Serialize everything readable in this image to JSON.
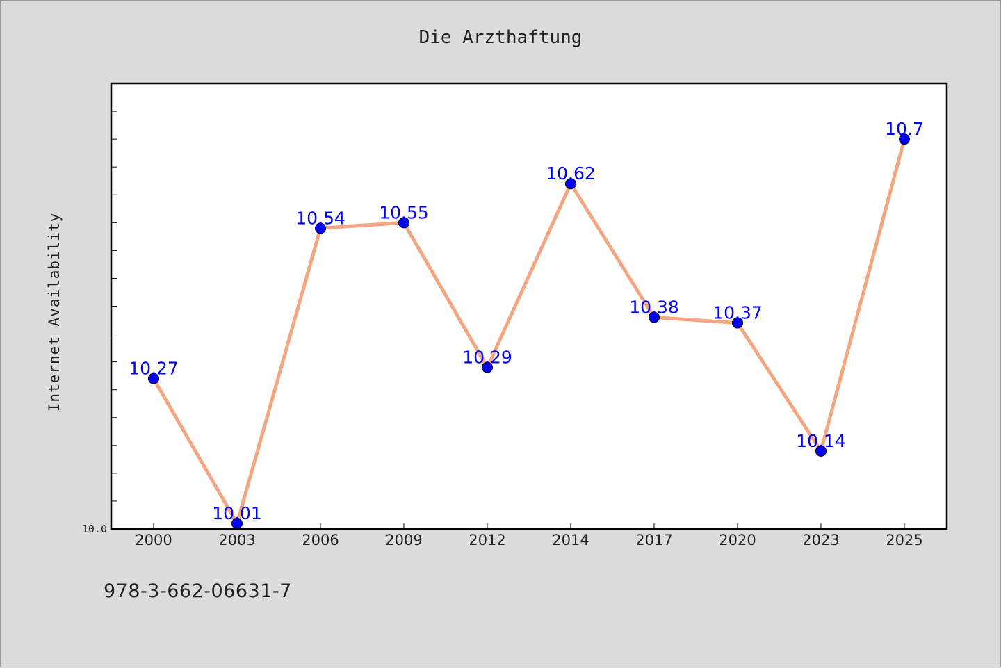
{
  "chart_data": {
    "type": "line",
    "title": "Die Arzthaftung",
    "xlabel": "",
    "ylabel": "Internet Availability",
    "categories": [
      "2000",
      "2003",
      "2006",
      "2009",
      "2012",
      "2014",
      "2017",
      "2020",
      "2023",
      "2025"
    ],
    "series": [
      {
        "values": [
          10.27,
          10.01,
          10.54,
          10.55,
          10.29,
          10.62,
          10.38,
          10.37,
          10.14,
          10.7
        ],
        "labels": [
          "10.27",
          "10.01",
          "10.54",
          "10.55",
          "10.29",
          "10.62",
          "10.38",
          "10.37",
          "10.14",
          "10.7"
        ]
      }
    ],
    "ylim": [
      10.0,
      10.8
    ],
    "yticks_labeled": [
      "10.0"
    ],
    "grid": false,
    "line_color": "#f4a582",
    "marker_color": "#0000ff",
    "label_color": "#0000ff"
  },
  "footer": {
    "code": "978-3-662-06631-7"
  }
}
